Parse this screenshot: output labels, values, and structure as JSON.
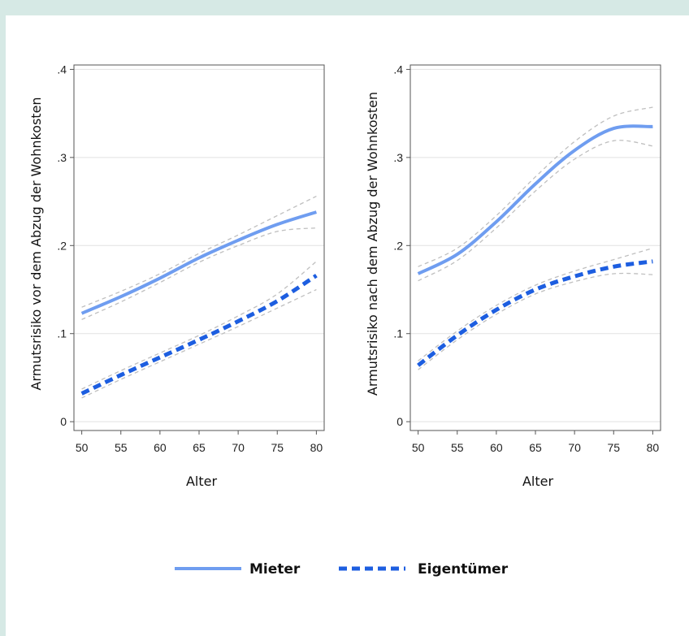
{
  "colors": {
    "mieter": "#6f9df0",
    "eigentuemer": "#1d5ee0",
    "ci": "#bfbfbf",
    "grid": "#e2e2e2",
    "axis": "#555555"
  },
  "legend": {
    "items": [
      {
        "name": "Mieter",
        "style": "solid"
      },
      {
        "name": "Eigentümer",
        "style": "dashed"
      }
    ],
    "placement": "bottom-center"
  },
  "chart_data": [
    {
      "type": "line",
      "xlabel": "Alter",
      "ylabel": "Armutsrisiko vor dem Abzug der Wohnkosten",
      "xlim": [
        49,
        81
      ],
      "ylim": [
        -0.01,
        0.405
      ],
      "xticks": [
        50,
        55,
        60,
        65,
        70,
        75,
        80
      ],
      "yticks": [
        0,
        0.1,
        0.2,
        0.3,
        0.4
      ],
      "ytick_labels": [
        "0",
        ".1",
        ".2",
        ".3",
        ".4"
      ],
      "grid": true,
      "x": [
        50,
        55,
        60,
        65,
        70,
        75,
        80
      ],
      "series": [
        {
          "name": "Mieter",
          "values": [
            0.123,
            0.142,
            0.163,
            0.186,
            0.206,
            0.224,
            0.238
          ],
          "ci_upper": [
            0.13,
            0.148,
            0.168,
            0.191,
            0.212,
            0.234,
            0.256
          ],
          "ci_lower": [
            0.116,
            0.136,
            0.158,
            0.181,
            0.2,
            0.216,
            0.22
          ]
        },
        {
          "name": "Eigentümer",
          "values": [
            0.032,
            0.053,
            0.073,
            0.093,
            0.114,
            0.137,
            0.166
          ],
          "ci_upper": [
            0.037,
            0.058,
            0.078,
            0.098,
            0.12,
            0.145,
            0.182
          ],
          "ci_lower": [
            0.027,
            0.048,
            0.068,
            0.088,
            0.108,
            0.129,
            0.15
          ]
        }
      ]
    },
    {
      "type": "line",
      "xlabel": "Alter",
      "ylabel": "Armutsrisiko nach dem Abzug der Wohnkosten",
      "xlim": [
        49,
        81
      ],
      "ylim": [
        -0.01,
        0.405
      ],
      "xticks": [
        50,
        55,
        60,
        65,
        70,
        75,
        80
      ],
      "yticks": [
        0,
        0.1,
        0.2,
        0.3,
        0.4
      ],
      "ytick_labels": [
        "0",
        ".1",
        ".2",
        ".3",
        ".4"
      ],
      "grid": true,
      "x": [
        50,
        55,
        60,
        65,
        70,
        75,
        80
      ],
      "series": [
        {
          "name": "Mieter",
          "values": [
            0.168,
            0.19,
            0.227,
            0.27,
            0.308,
            0.333,
            0.335
          ],
          "ci_upper": [
            0.176,
            0.197,
            0.234,
            0.278,
            0.318,
            0.347,
            0.357
          ],
          "ci_lower": [
            0.16,
            0.183,
            0.22,
            0.262,
            0.298,
            0.319,
            0.313
          ]
        },
        {
          "name": "Eigentümer",
          "values": [
            0.064,
            0.098,
            0.127,
            0.15,
            0.165,
            0.176,
            0.182
          ],
          "ci_upper": [
            0.069,
            0.103,
            0.132,
            0.155,
            0.171,
            0.184,
            0.197
          ],
          "ci_lower": [
            0.059,
            0.093,
            0.122,
            0.145,
            0.159,
            0.168,
            0.167
          ]
        }
      ]
    }
  ]
}
